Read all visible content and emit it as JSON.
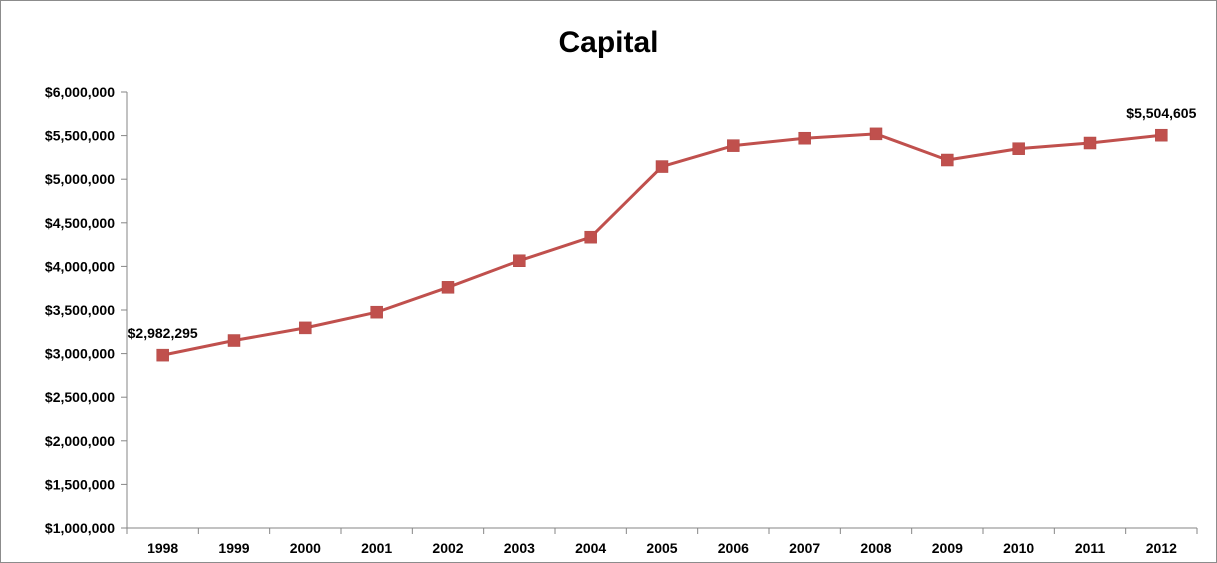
{
  "chart_data": {
    "type": "line",
    "title": "Capital",
    "xlabel": "",
    "ylabel": "",
    "categories": [
      "1998",
      "1999",
      "2000",
      "2001",
      "2002",
      "2003",
      "2004",
      "2005",
      "2006",
      "2007",
      "2008",
      "2009",
      "2010",
      "2011",
      "2012"
    ],
    "series": [
      {
        "values": [
          2982295,
          3150000,
          3295000,
          3475000,
          3760000,
          4065000,
          4335000,
          5145000,
          5385000,
          5470000,
          5520000,
          5220000,
          5350000,
          5415000,
          5504605
        ],
        "color": "#c0504d",
        "marker": "square"
      }
    ],
    "ylim": [
      1000000,
      6000000
    ],
    "y_ticks": [
      "$1,000,000",
      "$1,500,000",
      "$2,000,000",
      "$2,500,000",
      "$3,000,000",
      "$3,500,000",
      "$4,000,000",
      "$4,500,000",
      "$5,000,000",
      "$5,500,000",
      "$6,000,000"
    ],
    "data_labels": [
      {
        "index": 0,
        "text": "$2,982,295"
      },
      {
        "index": 14,
        "text": "$5,504,605"
      }
    ],
    "grid": false,
    "legend": "none"
  }
}
